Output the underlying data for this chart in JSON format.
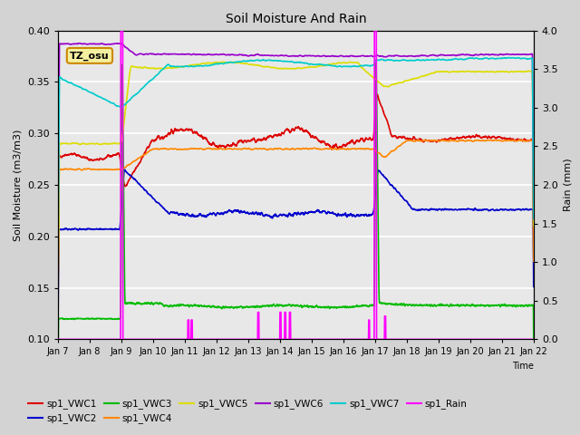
{
  "title": "Soil Moisture And Rain",
  "xlabel": "Time",
  "ylabel_left": "Soil Moisture (m3/m3)",
  "ylabel_right": "Rain (mm)",
  "ylim_left": [
    0.1,
    0.4
  ],
  "ylim_right": [
    0.0,
    4.0
  ],
  "annotation_text": "TZ_osu",
  "colors": {
    "sp1_VWC1": "#dd0000",
    "sp1_VWC2": "#0000cc",
    "sp1_VWC3": "#00bb00",
    "sp1_VWC4": "#ff8800",
    "sp1_VWC5": "#dddd00",
    "sp1_VWC6": "#9900cc",
    "sp1_VWC7": "#00cccc",
    "sp1_Rain": "#ff00ff"
  },
  "x_tick_labels": [
    "Jan 7",
    "Jan 8",
    "Jan 9",
    "Jan 10",
    "Jan 11",
    "Jan 12",
    "Jan 13",
    "Jan 14",
    "Jan 15",
    "Jan 16",
    "Jan 17",
    "Jan 18",
    "Jan 19",
    "Jan 20",
    "Jan 21",
    "Jan 22"
  ],
  "n_points": 2000,
  "jan9": 2.0,
  "jan10": 3.0,
  "jan17": 10.0
}
